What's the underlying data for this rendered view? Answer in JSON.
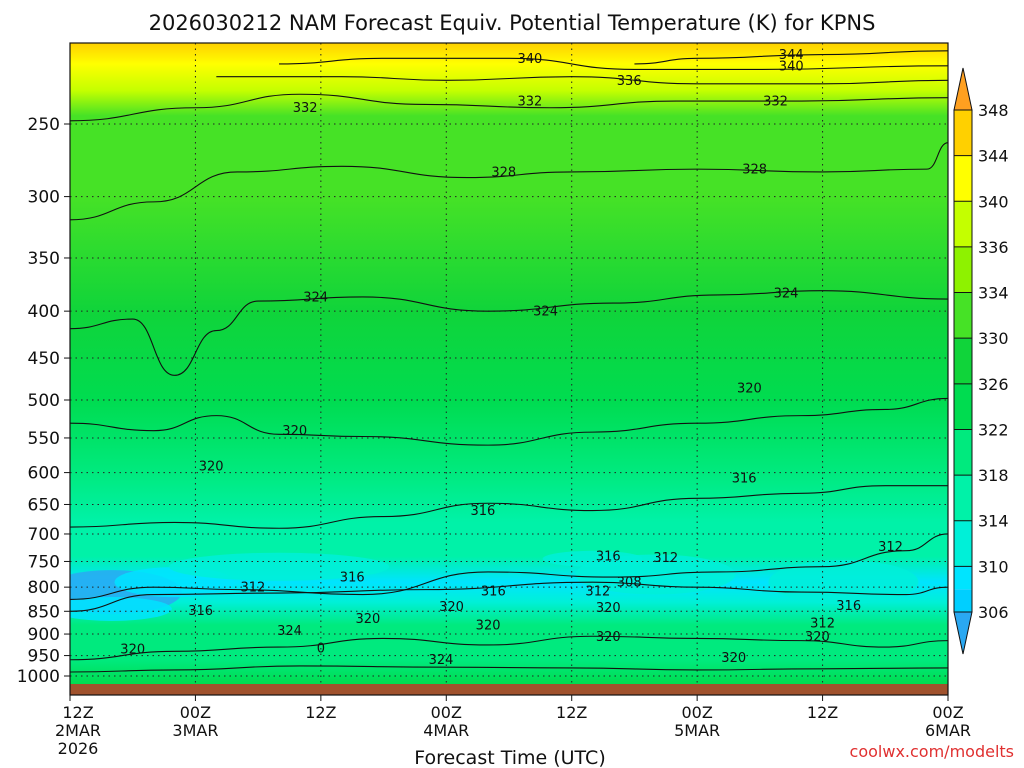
{
  "chart_data": {
    "type": "heatmap",
    "title": "2026030212 NAM Forecast Equiv. Potential Temperature (K) for KPNS",
    "xlabel": "Forecast Time (UTC)",
    "ylabel": "",
    "credit": "coolwx.com/modelts",
    "x_hours_range": [
      0,
      84
    ],
    "y_pressure_range": [
      1020,
      200
    ],
    "x_ticks": [
      {
        "hour": 0,
        "lines": [
          "12Z",
          "2MAR",
          "2026"
        ]
      },
      {
        "hour": 12,
        "lines": [
          "00Z",
          "3MAR"
        ]
      },
      {
        "hour": 24,
        "lines": [
          "12Z"
        ]
      },
      {
        "hour": 36,
        "lines": [
          "00Z",
          "4MAR"
        ]
      },
      {
        "hour": 48,
        "lines": [
          "12Z"
        ]
      },
      {
        "hour": 60,
        "lines": [
          "00Z",
          "5MAR"
        ]
      },
      {
        "hour": 72,
        "lines": [
          "12Z"
        ]
      },
      {
        "hour": 84,
        "lines": [
          "00Z",
          "6MAR"
        ]
      }
    ],
    "y_ticks": [
      250,
      300,
      350,
      400,
      450,
      500,
      550,
      600,
      650,
      700,
      750,
      800,
      850,
      900,
      950,
      1000
    ],
    "grid": true,
    "colorbar": {
      "levels": [
        306,
        310,
        314,
        318,
        322,
        326,
        330,
        334,
        336,
        340,
        344,
        348
      ],
      "bands": [
        {
          "lo": 302,
          "hi": 306,
          "color": "#2aa8f2"
        },
        {
          "lo": 306,
          "hi": 308,
          "color": "#00cfff"
        },
        {
          "lo": 308,
          "hi": 310,
          "color": "#00e4ff"
        },
        {
          "lo": 310,
          "hi": 314,
          "color": "#00f0d8"
        },
        {
          "lo": 314,
          "hi": 318,
          "color": "#00f2a8"
        },
        {
          "lo": 318,
          "hi": 322,
          "color": "#00ea7e"
        },
        {
          "lo": 322,
          "hi": 326,
          "color": "#00dc50"
        },
        {
          "lo": 326,
          "hi": 330,
          "color": "#10d43a"
        },
        {
          "lo": 330,
          "hi": 334,
          "color": "#46e226"
        },
        {
          "lo": 334,
          "hi": 336,
          "color": "#8ef200"
        },
        {
          "lo": 336,
          "hi": 340,
          "color": "#c4ff00"
        },
        {
          "lo": 340,
          "hi": 344,
          "color": "#ffff00"
        },
        {
          "lo": 344,
          "hi": 348,
          "color": "#ffd000"
        },
        {
          "lo": 348,
          "hi": 352,
          "color": "#ffa020"
        }
      ]
    },
    "contours": [
      {
        "value": 344,
        "points": [
          [
            54,
            215
          ],
          [
            60,
            212
          ],
          [
            72,
            210
          ],
          [
            84,
            208
          ]
        ]
      },
      {
        "value": 340,
        "points": [
          [
            20,
            215
          ],
          [
            30,
            212
          ],
          [
            42,
            212
          ],
          [
            54,
            218
          ],
          [
            66,
            218
          ],
          [
            84,
            216
          ]
        ]
      },
      {
        "value": 336,
        "points": [
          [
            14,
            222
          ],
          [
            26,
            222
          ],
          [
            36,
            224
          ],
          [
            48,
            222
          ],
          [
            60,
            226
          ],
          [
            72,
            226
          ],
          [
            84,
            224
          ]
        ]
      },
      {
        "value": 332,
        "points": [
          [
            0,
            248
          ],
          [
            12,
            240
          ],
          [
            22,
            232
          ],
          [
            34,
            238
          ],
          [
            46,
            240
          ],
          [
            58,
            236
          ],
          [
            70,
            236
          ],
          [
            84,
            234
          ]
        ]
      },
      {
        "value": 328,
        "points": [
          [
            0,
            318
          ],
          [
            8,
            304
          ],
          [
            16,
            282
          ],
          [
            26,
            278
          ],
          [
            38,
            286
          ],
          [
            48,
            282
          ],
          [
            60,
            280
          ],
          [
            72,
            282
          ],
          [
            82,
            280
          ],
          [
            84,
            262
          ]
        ]
      },
      {
        "value": 324,
        "points": [
          [
            0,
            418
          ],
          [
            6,
            408
          ],
          [
            10,
            470
          ],
          [
            14,
            420
          ],
          [
            18,
            390
          ],
          [
            28,
            386
          ],
          [
            40,
            400
          ],
          [
            52,
            392
          ],
          [
            62,
            384
          ],
          [
            72,
            380
          ],
          [
            84,
            388
          ]
        ]
      },
      {
        "value": 320,
        "points": [
          [
            0,
            530
          ],
          [
            8,
            540
          ],
          [
            14,
            520
          ],
          [
            20,
            545
          ],
          [
            28,
            548
          ],
          [
            40,
            560
          ],
          [
            50,
            542
          ],
          [
            60,
            530
          ],
          [
            70,
            520
          ],
          [
            78,
            512
          ],
          [
            84,
            498
          ]
        ]
      },
      {
        "value": 316,
        "points": [
          [
            0,
            688
          ],
          [
            10,
            680
          ],
          [
            20,
            690
          ],
          [
            30,
            670
          ],
          [
            40,
            648
          ],
          [
            50,
            660
          ],
          [
            60,
            640
          ],
          [
            70,
            632
          ],
          [
            78,
            620
          ],
          [
            84,
            620
          ]
        ]
      },
      {
        "value": 312,
        "points": [
          [
            0,
            825
          ],
          [
            8,
            800
          ],
          [
            16,
            805
          ],
          [
            28,
            815
          ],
          [
            40,
            770
          ],
          [
            52,
            780
          ],
          [
            62,
            770
          ],
          [
            72,
            760
          ],
          [
            80,
            730
          ],
          [
            84,
            700
          ]
        ]
      },
      {
        "value": 308,
        "points": [
          [
            0,
            850
          ],
          [
            8,
            815
          ],
          [
            20,
            812
          ],
          [
            34,
            805
          ],
          [
            50,
            790
          ],
          [
            60,
            800
          ],
          [
            70,
            810
          ],
          [
            80,
            815
          ],
          [
            84,
            800
          ]
        ]
      },
      {
        "value": 320,
        "points": [
          [
            0,
            960
          ],
          [
            10,
            940
          ],
          [
            20,
            930
          ],
          [
            30,
            910
          ],
          [
            40,
            925
          ],
          [
            50,
            905
          ],
          [
            60,
            910
          ],
          [
            70,
            915
          ],
          [
            78,
            930
          ],
          [
            84,
            915
          ]
        ]
      },
      {
        "value": 324,
        "points": [
          [
            0,
            990
          ],
          [
            10,
            985
          ],
          [
            22,
            975
          ],
          [
            36,
            978
          ],
          [
            48,
            980
          ],
          [
            60,
            985
          ],
          [
            72,
            982
          ],
          [
            84,
            980
          ]
        ]
      }
    ],
    "contour_labels": [
      {
        "text": "340",
        "hour": 44,
        "p": 212
      },
      {
        "text": "344",
        "hour": 69,
        "p": 210
      },
      {
        "text": "340",
        "hour": 69,
        "p": 216
      },
      {
        "text": "336",
        "hour": 53.5,
        "p": 224
      },
      {
        "text": "332",
        "hour": 22.5,
        "p": 240
      },
      {
        "text": "332",
        "hour": 44,
        "p": 236
      },
      {
        "text": "332",
        "hour": 67.5,
        "p": 236
      },
      {
        "text": "328",
        "hour": 41.5,
        "p": 282
      },
      {
        "text": "328",
        "hour": 65.5,
        "p": 280
      },
      {
        "text": "324",
        "hour": 23.5,
        "p": 386
      },
      {
        "text": "324",
        "hour": 45.5,
        "p": 400
      },
      {
        "text": "324",
        "hour": 68.5,
        "p": 382
      },
      {
        "text": "320",
        "hour": 65,
        "p": 485
      },
      {
        "text": "320",
        "hour": 21.5,
        "p": 540
      },
      {
        "text": "320",
        "hour": 13.5,
        "p": 590
      },
      {
        "text": "316",
        "hour": 64.5,
        "p": 608
      },
      {
        "text": "316",
        "hour": 39.5,
        "p": 660
      },
      {
        "text": "316",
        "hour": 51.5,
        "p": 740
      },
      {
        "text": "312",
        "hour": 57,
        "p": 743
      },
      {
        "text": "312",
        "hour": 78.5,
        "p": 722
      },
      {
        "text": "316",
        "hour": 27,
        "p": 780
      },
      {
        "text": "312",
        "hour": 17.5,
        "p": 800
      },
      {
        "text": "308",
        "hour": 53.5,
        "p": 790
      },
      {
        "text": "316",
        "hour": 40.5,
        "p": 808
      },
      {
        "text": "312",
        "hour": 50.5,
        "p": 808
      },
      {
        "text": "320",
        "hour": 36.5,
        "p": 840
      },
      {
        "text": "320",
        "hour": 51.5,
        "p": 842
      },
      {
        "text": "316",
        "hour": 12.5,
        "p": 848
      },
      {
        "text": "316",
        "hour": 74.5,
        "p": 838
      },
      {
        "text": "320",
        "hour": 28.5,
        "p": 865
      },
      {
        "text": "320",
        "hour": 40,
        "p": 880
      },
      {
        "text": "312",
        "hour": 72,
        "p": 875
      },
      {
        "text": "320",
        "hour": 51.5,
        "p": 905
      },
      {
        "text": "320",
        "hour": 71.5,
        "p": 905
      },
      {
        "text": "324",
        "hour": 21,
        "p": 892
      },
      {
        "text": "320",
        "hour": 6,
        "p": 935
      },
      {
        "text": "320",
        "hour": 63.5,
        "p": 955
      },
      {
        "text": "324",
        "hour": 35.5,
        "p": 960
      },
      {
        "text": "0",
        "hour": 24,
        "p": 932
      }
    ]
  }
}
